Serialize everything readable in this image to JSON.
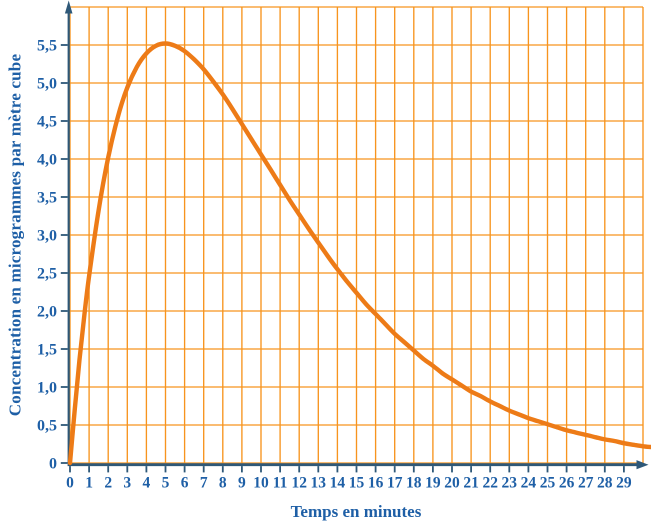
{
  "figure": {
    "background": "#FFFFFF"
  },
  "chart_data": {
    "type": "line",
    "title": "",
    "xlabel": "Temps en minutes",
    "ylabel": "Concentration en microgrammes par mètre cube",
    "xlim": [
      0,
      30
    ],
    "ylim": [
      0,
      6
    ],
    "x_gridline_step": 1,
    "y_gridline_step": 0.5,
    "grid": true,
    "legend_position": "none",
    "x_tick_labels": [
      "0",
      "1",
      "2",
      "3",
      "4",
      "5",
      "6",
      "7",
      "8",
      "9",
      "10",
      "11",
      "12",
      "13",
      "14",
      "15",
      "16",
      "17",
      "18",
      "19",
      "20",
      "21",
      "22",
      "23",
      "24",
      "25",
      "26",
      "27",
      "28",
      "29"
    ],
    "y_tick_labels": [
      "0",
      "0,5",
      "1,0",
      "1,5",
      "2,0",
      "2,5",
      "3,0",
      "3,5",
      "4,0",
      "4,5",
      "5,0",
      "5,5"
    ],
    "colors": {
      "grid": "#F7941E",
      "curve": "#ED7B17",
      "axis": "#2E5878",
      "text": "#1E5FA6"
    },
    "series": [
      {
        "name": "concentration",
        "x": [
          0,
          0.25,
          0.5,
          0.75,
          1,
          1.5,
          2,
          2.5,
          3,
          3.5,
          4,
          4.5,
          5,
          5.5,
          6,
          6.5,
          7,
          7.5,
          8,
          8.5,
          9,
          9.5,
          10,
          10.5,
          11,
          11.5,
          12,
          12.5,
          13,
          13.5,
          14,
          14.5,
          15,
          15.5,
          16,
          16.5,
          17,
          17.5,
          18,
          18.5,
          19,
          19.5,
          20,
          20.5,
          21,
          21.5,
          22,
          22.5,
          23,
          23.5,
          24,
          24.5,
          25,
          25.5,
          26,
          26.5,
          27,
          27.5,
          28,
          28.5,
          29,
          29.5,
          30,
          30.4
        ],
        "y": [
          0,
          0.71,
          1.36,
          1.94,
          2.46,
          3.33,
          4.02,
          4.55,
          4.94,
          5.21,
          5.39,
          5.49,
          5.52,
          5.49,
          5.42,
          5.31,
          5.18,
          5.02,
          4.85,
          4.66,
          4.46,
          4.26,
          4.06,
          3.86,
          3.66,
          3.46,
          3.27,
          3.08,
          2.9,
          2.72,
          2.55,
          2.39,
          2.24,
          2.09,
          1.96,
          1.83,
          1.7,
          1.59,
          1.48,
          1.37,
          1.28,
          1.18,
          1.1,
          1.02,
          0.94,
          0.88,
          0.81,
          0.75,
          0.69,
          0.64,
          0.59,
          0.55,
          0.51,
          0.47,
          0.43,
          0.4,
          0.37,
          0.34,
          0.31,
          0.29,
          0.26,
          0.24,
          0.22,
          0.21
        ]
      }
    ],
    "peak_point": {
      "x": 5,
      "y": 5.52
    }
  }
}
